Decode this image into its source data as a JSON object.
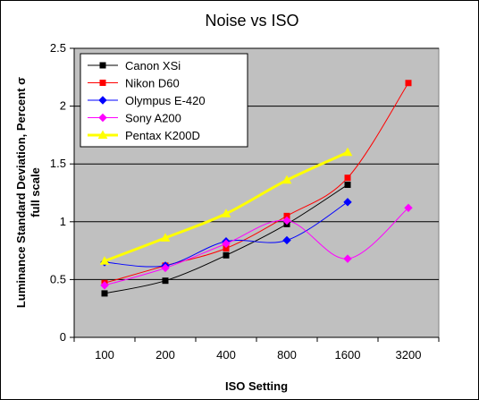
{
  "chart_data": {
    "type": "line",
    "title": "Noise vs ISO",
    "xlabel": "ISO Setting",
    "ylabel": [
      "Luminance Standard Deviation, Percent σ",
      "full scale"
    ],
    "categories": [
      "100",
      "200",
      "400",
      "800",
      "1600",
      "3200"
    ],
    "ylim": [
      0,
      2.5
    ],
    "yticks": [
      "0",
      "0.5",
      "1",
      "1.5",
      "2",
      "2.5"
    ],
    "ytick_values": [
      0,
      0.5,
      1,
      1.5,
      2,
      2.5
    ],
    "grid": "horizontal",
    "legend_position": "top-left",
    "plot_background": "#c0c0c0",
    "series": [
      {
        "name": "Canon XSi",
        "color": "#000000",
        "marker": "square",
        "values": [
          0.38,
          0.49,
          0.71,
          0.98,
          1.32,
          null
        ]
      },
      {
        "name": "Nikon D60",
        "color": "#ff0000",
        "marker": "square",
        "values": [
          0.47,
          0.62,
          0.77,
          1.05,
          1.38,
          2.2
        ]
      },
      {
        "name": "Olympus E-420",
        "color": "#0000ff",
        "marker": "diamond",
        "values": [
          0.65,
          0.62,
          0.83,
          0.84,
          1.17,
          null
        ]
      },
      {
        "name": "Sony A200",
        "color": "#ff00ff",
        "marker": "diamond",
        "values": [
          0.45,
          0.6,
          0.81,
          1.01,
          0.68,
          1.12
        ]
      },
      {
        "name": "Pentax K200D",
        "color": "#ffff00",
        "marker": "triangle",
        "values": [
          0.66,
          0.86,
          1.07,
          1.36,
          1.6,
          null
        ]
      }
    ]
  }
}
